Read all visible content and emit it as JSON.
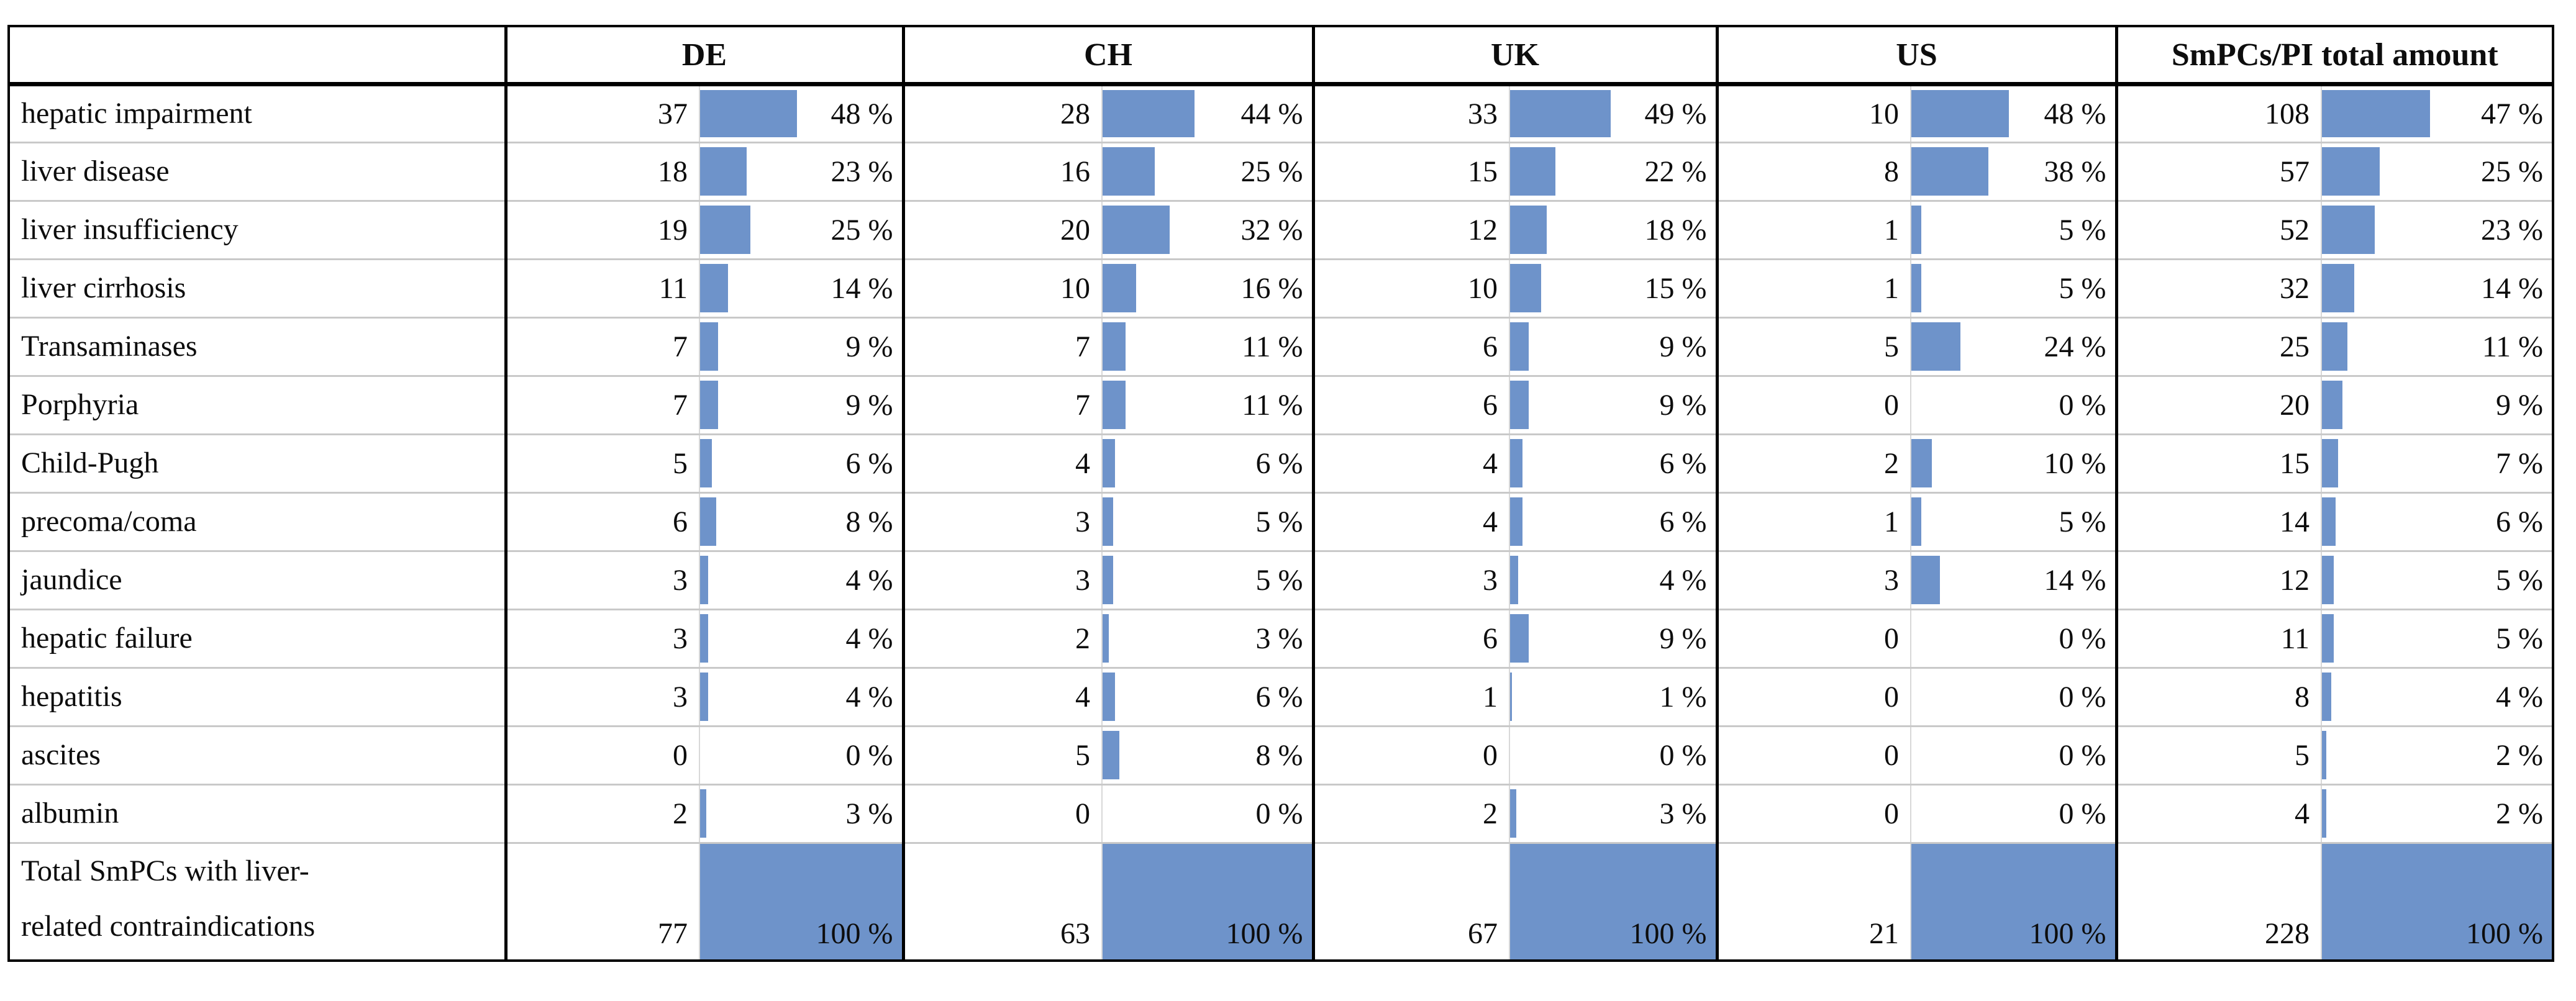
{
  "colors": {
    "bar_fill": "#6E93CA",
    "grid_line": "#c9c9c9",
    "section_border": "#000000"
  },
  "chart_data": {
    "type": "table",
    "corner_label": "",
    "column_groups": [
      "DE",
      "CH",
      "UK",
      "US",
      "SmPCs/PI total amount"
    ],
    "sub_columns": [
      "count",
      "bar",
      "percent"
    ],
    "percent_suffix": " %",
    "rows": [
      {
        "label": "hepatic impairment",
        "values": [
          {
            "count": 37,
            "percent": 48
          },
          {
            "count": 28,
            "percent": 44
          },
          {
            "count": 33,
            "percent": 49
          },
          {
            "count": 10,
            "percent": 48
          },
          {
            "count": 108,
            "percent": 47
          }
        ]
      },
      {
        "label": "liver disease",
        "values": [
          {
            "count": 18,
            "percent": 23
          },
          {
            "count": 16,
            "percent": 25
          },
          {
            "count": 15,
            "percent": 22
          },
          {
            "count": 8,
            "percent": 38
          },
          {
            "count": 57,
            "percent": 25
          }
        ]
      },
      {
        "label": "liver insufficiency",
        "values": [
          {
            "count": 19,
            "percent": 25
          },
          {
            "count": 20,
            "percent": 32
          },
          {
            "count": 12,
            "percent": 18
          },
          {
            "count": 1,
            "percent": 5
          },
          {
            "count": 52,
            "percent": 23
          }
        ]
      },
      {
        "label": "liver cirrhosis",
        "values": [
          {
            "count": 11,
            "percent": 14
          },
          {
            "count": 10,
            "percent": 16
          },
          {
            "count": 10,
            "percent": 15
          },
          {
            "count": 1,
            "percent": 5
          },
          {
            "count": 32,
            "percent": 14
          }
        ]
      },
      {
        "label": "Transaminases",
        "values": [
          {
            "count": 7,
            "percent": 9
          },
          {
            "count": 7,
            "percent": 11
          },
          {
            "count": 6,
            "percent": 9
          },
          {
            "count": 5,
            "percent": 24
          },
          {
            "count": 25,
            "percent": 11
          }
        ]
      },
      {
        "label": "Porphyria",
        "values": [
          {
            "count": 7,
            "percent": 9
          },
          {
            "count": 7,
            "percent": 11
          },
          {
            "count": 6,
            "percent": 9
          },
          {
            "count": 0,
            "percent": 0
          },
          {
            "count": 20,
            "percent": 9
          }
        ]
      },
      {
        "label": "Child-Pugh",
        "values": [
          {
            "count": 5,
            "percent": 6
          },
          {
            "count": 4,
            "percent": 6
          },
          {
            "count": 4,
            "percent": 6
          },
          {
            "count": 2,
            "percent": 10
          },
          {
            "count": 15,
            "percent": 7
          }
        ]
      },
      {
        "label": "precoma/coma",
        "values": [
          {
            "count": 6,
            "percent": 8
          },
          {
            "count": 3,
            "percent": 5
          },
          {
            "count": 4,
            "percent": 6
          },
          {
            "count": 1,
            "percent": 5
          },
          {
            "count": 14,
            "percent": 6
          }
        ]
      },
      {
        "label": "jaundice",
        "values": [
          {
            "count": 3,
            "percent": 4
          },
          {
            "count": 3,
            "percent": 5
          },
          {
            "count": 3,
            "percent": 4
          },
          {
            "count": 3,
            "percent": 14
          },
          {
            "count": 12,
            "percent": 5
          }
        ]
      },
      {
        "label": "hepatic failure",
        "values": [
          {
            "count": 3,
            "percent": 4
          },
          {
            "count": 2,
            "percent": 3
          },
          {
            "count": 6,
            "percent": 9
          },
          {
            "count": 0,
            "percent": 0
          },
          {
            "count": 11,
            "percent": 5
          }
        ]
      },
      {
        "label": "hepatitis",
        "values": [
          {
            "count": 3,
            "percent": 4
          },
          {
            "count": 4,
            "percent": 6
          },
          {
            "count": 1,
            "percent": 1
          },
          {
            "count": 0,
            "percent": 0
          },
          {
            "count": 8,
            "percent": 4
          }
        ]
      },
      {
        "label": "ascites",
        "values": [
          {
            "count": 0,
            "percent": 0
          },
          {
            "count": 5,
            "percent": 8
          },
          {
            "count": 0,
            "percent": 0
          },
          {
            "count": 0,
            "percent": 0
          },
          {
            "count": 5,
            "percent": 2
          }
        ]
      },
      {
        "label": "albumin",
        "values": [
          {
            "count": 2,
            "percent": 3
          },
          {
            "count": 0,
            "percent": 0
          },
          {
            "count": 2,
            "percent": 3
          },
          {
            "count": 0,
            "percent": 0
          },
          {
            "count": 4,
            "percent": 2
          }
        ]
      },
      {
        "label": "Total SmPCs with liver-\nrelated contraindications",
        "is_total": true,
        "values": [
          {
            "count": 77,
            "percent": 100
          },
          {
            "count": 63,
            "percent": 100
          },
          {
            "count": 67,
            "percent": 100
          },
          {
            "count": 21,
            "percent": 100
          },
          {
            "count": 228,
            "percent": 100
          }
        ]
      }
    ]
  }
}
